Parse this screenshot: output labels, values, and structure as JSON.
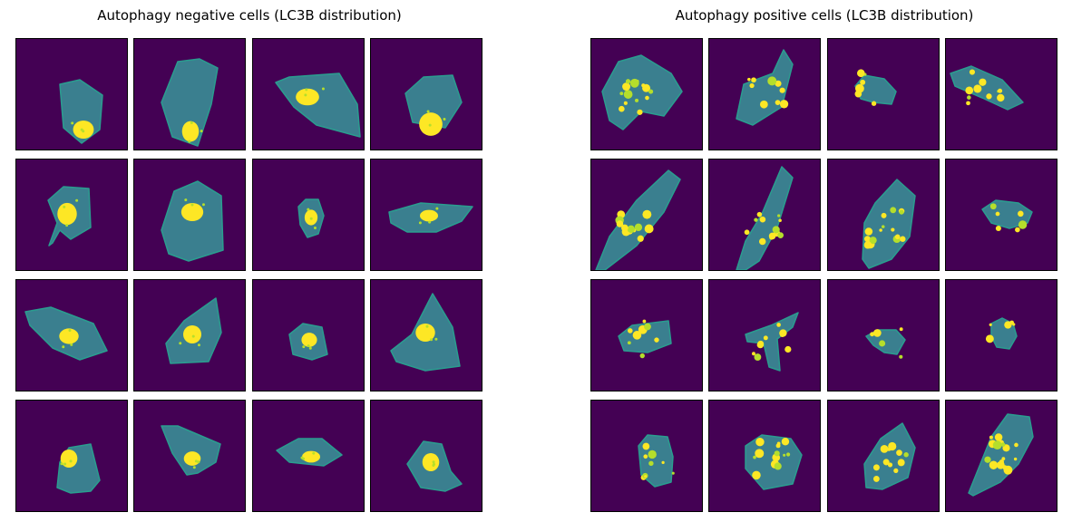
{
  "titles": {
    "left": "Autophagy negative cells (LC3B distribution)",
    "right": "Autophagy positive cells (LC3B distribution)"
  },
  "colors": {
    "background": "#440154",
    "cytoplasm": "#3a7f8f",
    "cytoplasm_bright": "#2a9d8f",
    "nucleus": "#fde725",
    "spot": "#b5de2b"
  },
  "grid": {
    "rows": 4,
    "cols": 4,
    "colormap": "viridis"
  },
  "groups": [
    {
      "name": "negative",
      "label": "Autophagy negative cells (LC3B distribution)",
      "cell_count": 16,
      "pattern": "diffuse LC3B with single bright perinuclear cluster"
    },
    {
      "name": "positive",
      "label": "Autophagy positive cells (LC3B distribution)",
      "cell_count": 16,
      "pattern": "multiple bright LC3B puncta throughout cytoplasm"
    }
  ]
}
